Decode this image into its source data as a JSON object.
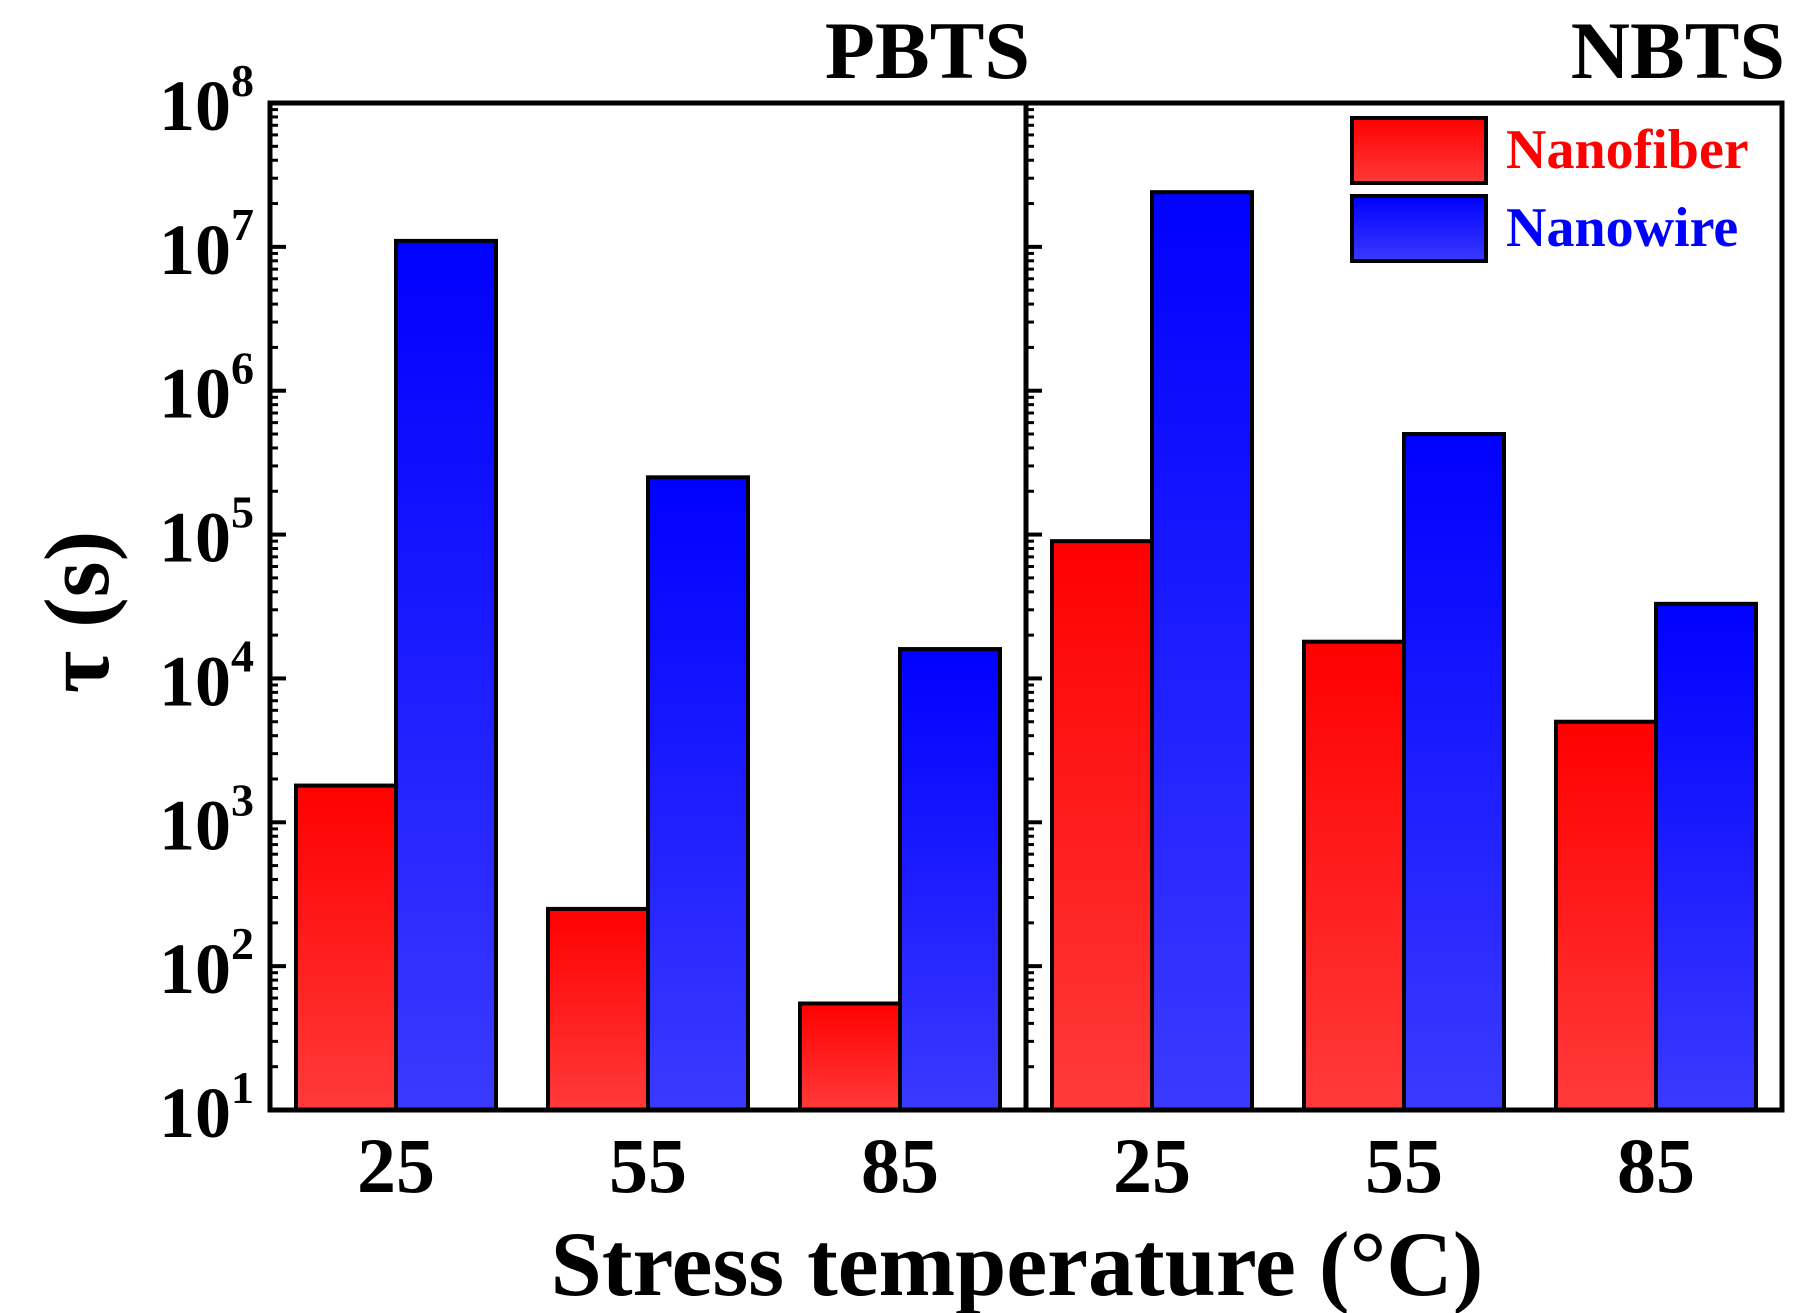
{
  "chart_data": {
    "type": "bar",
    "ylabel": "τ (s)",
    "xlabel": "Stress temperature (°C)",
    "yscale": "log",
    "ylim": [
      10,
      100000000
    ],
    "yticks": [
      {
        "value": 10,
        "base": "10",
        "exp": "1"
      },
      {
        "value": 100,
        "base": "10",
        "exp": "2"
      },
      {
        "value": 1000,
        "base": "10",
        "exp": "3"
      },
      {
        "value": 10000,
        "base": "10",
        "exp": "4"
      },
      {
        "value": 100000,
        "base": "10",
        "exp": "5"
      },
      {
        "value": 1000000,
        "base": "10",
        "exp": "6"
      },
      {
        "value": 10000000,
        "base": "10",
        "exp": "7"
      },
      {
        "value": 100000000,
        "base": "10",
        "exp": "8"
      }
    ],
    "legend": {
      "placement": "top-right",
      "entries": [
        {
          "name": "Nanofiber",
          "color": "#ff0000"
        },
        {
          "name": "Nanowire",
          "color": "#0000ff"
        }
      ]
    },
    "panels": [
      {
        "title": "PBTS",
        "categories": [
          "25",
          "55",
          "85"
        ],
        "series": [
          {
            "name": "Nanofiber",
            "values": [
              1800,
              250,
              55
            ]
          },
          {
            "name": "Nanowire",
            "values": [
              11000000,
              250000,
              16000
            ]
          }
        ]
      },
      {
        "title": "NBTS",
        "categories": [
          "25",
          "55",
          "85"
        ],
        "series": [
          {
            "name": "Nanofiber",
            "values": [
              90000,
              18000,
              5000
            ]
          },
          {
            "name": "Nanowire",
            "values": [
              24000000,
              500000,
              33000
            ]
          }
        ]
      }
    ],
    "colors": {
      "nanofiber_top": "#ff0000",
      "nanofiber_bottom": "#ff3a3a",
      "nanowire_top": "#0000ff",
      "nanowire_bottom": "#3a3aff"
    }
  }
}
